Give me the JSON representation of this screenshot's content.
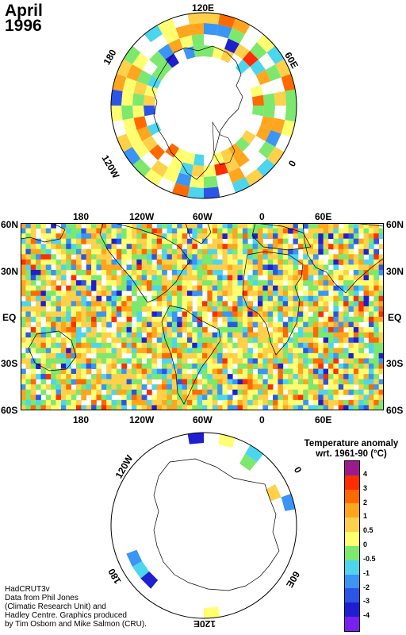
{
  "header": {
    "month": "April",
    "year": "1996"
  },
  "north_polar": {
    "lon_labels": [
      "120E",
      "60E",
      "0",
      "120W",
      "180"
    ]
  },
  "world_map": {
    "lon_labels_top": [
      "180",
      "120W",
      "60W",
      "0",
      "60E"
    ],
    "lon_labels_bottom": [
      "180",
      "120W",
      "60W",
      "0",
      "60E"
    ],
    "lat_labels": [
      "60N",
      "30N",
      "EQ",
      "30S",
      "60S"
    ]
  },
  "south_polar": {
    "lon_labels": [
      "120W",
      "0",
      "60E",
      "120E",
      "180"
    ]
  },
  "legend": {
    "title_line1": "Temperature anomaly",
    "title_line2": "wrt. 1961-90  (°C)",
    "labels": [
      "4",
      "3",
      "2",
      "1",
      "0.5",
      "0",
      "-0.5",
      "-1",
      "-2",
      "-3",
      "-4"
    ],
    "colors": [
      "#9b1a8c",
      "#ff2d00",
      "#ff6a00",
      "#ffa51e",
      "#ffd04a",
      "#ffff70",
      "#7de86e",
      "#4cd6ee",
      "#3a95f5",
      "#2b55e6",
      "#1f1fd0",
      "#7a1ff0"
    ]
  },
  "credits": {
    "line1": "HadCRUT3v",
    "line2": "Data from Phil Jones",
    "line3": "(Climatic Research Unit) and",
    "line4": "Hadley Centre.  Graphics produced",
    "line5": "by Tim Osborn and Mike Salmon (CRU)."
  }
}
